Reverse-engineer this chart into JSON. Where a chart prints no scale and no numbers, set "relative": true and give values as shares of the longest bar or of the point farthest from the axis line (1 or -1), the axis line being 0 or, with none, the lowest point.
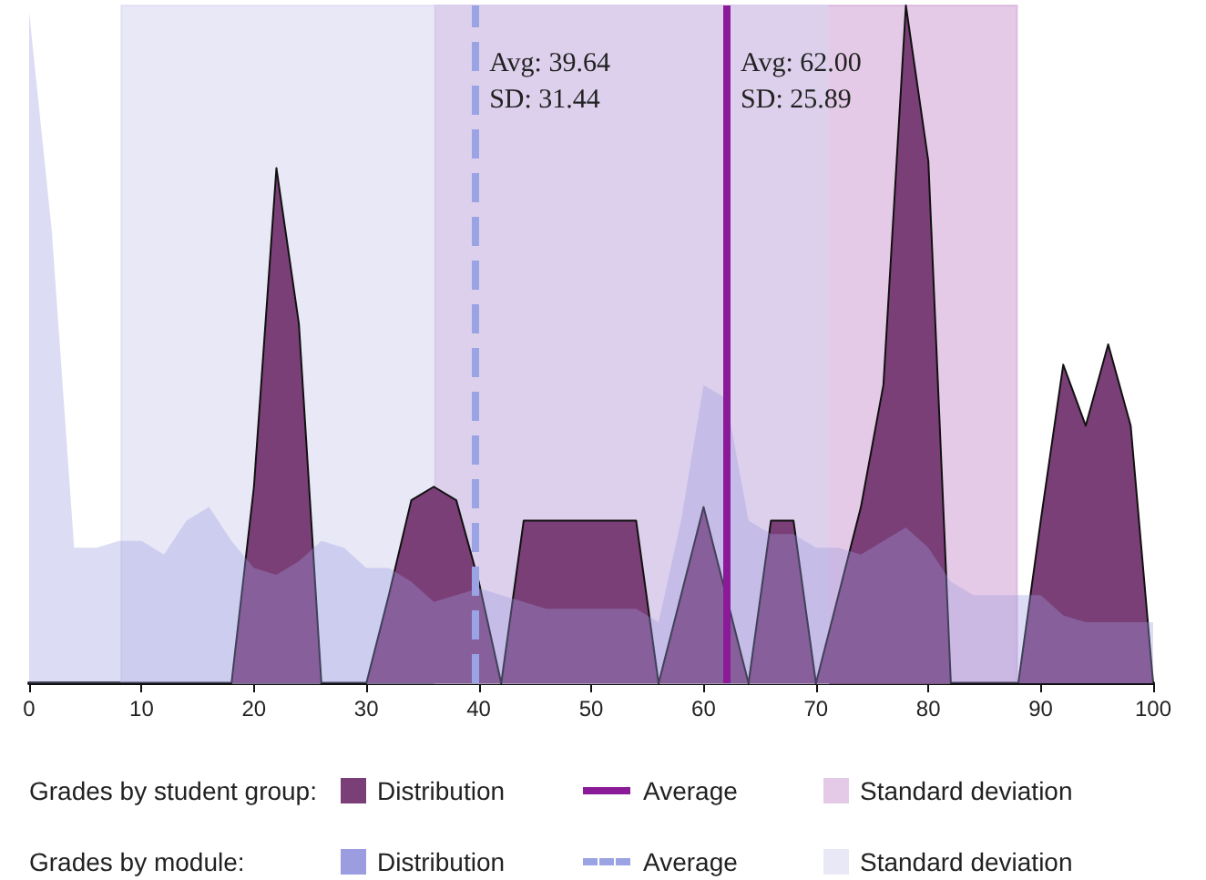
{
  "chart_data": {
    "type": "area",
    "relative": true,
    "x": [
      0,
      2,
      4,
      6,
      8,
      10,
      12,
      14,
      16,
      18,
      20,
      22,
      24,
      26,
      28,
      30,
      32,
      34,
      36,
      38,
      40,
      42,
      44,
      46,
      48,
      50,
      52,
      54,
      56,
      58,
      60,
      62,
      64,
      66,
      68,
      70,
      72,
      74,
      76,
      78,
      80,
      82,
      84,
      86,
      88,
      90,
      92,
      94,
      96,
      98,
      100
    ],
    "xlim": [
      0,
      100
    ],
    "xticks": [
      0,
      10,
      20,
      30,
      40,
      50,
      60,
      70,
      80,
      90,
      100
    ],
    "grid": false,
    "legend": "bottom",
    "series": [
      {
        "name": "Distribution",
        "color": "#7b3f77",
        "values": [
          0,
          0,
          0,
          0,
          0,
          0,
          0,
          0,
          0,
          0,
          0.29,
          0.76,
          0.53,
          0,
          0,
          0,
          0.13,
          0.27,
          0.29,
          0.27,
          0.15,
          0,
          0.24,
          0.24,
          0.24,
          0.24,
          0.24,
          0.24,
          0,
          0.13,
          0.26,
          0.13,
          0,
          0.24,
          0.24,
          0,
          0.13,
          0.26,
          0.44,
          1,
          0.77,
          0,
          0,
          0,
          0,
          0.24,
          0.47,
          0.38,
          0.5,
          0.38,
          0
        ]
      },
      {
        "name": "Distribution",
        "color": "#9c9ce0",
        "values": [
          0.99,
          0.67,
          0.2,
          0.2,
          0.21,
          0.21,
          0.19,
          0.24,
          0.26,
          0.21,
          0.17,
          0.16,
          0.18,
          0.21,
          0.2,
          0.17,
          0.17,
          0.15,
          0.12,
          0.13,
          0.14,
          0.13,
          0.12,
          0.11,
          0.11,
          0.11,
          0.11,
          0.11,
          0.09,
          0.24,
          0.44,
          0.42,
          0.24,
          0.22,
          0.22,
          0.2,
          0.2,
          0.19,
          0.21,
          0.23,
          0.2,
          0.15,
          0.13,
          0.13,
          0.13,
          0.13,
          0.1,
          0.09,
          0.09,
          0.09,
          0.09
        ]
      }
    ],
    "ref_lines": [
      {
        "axis": "x",
        "value": 62,
        "label": "Average",
        "color": "#8b1a98",
        "line_style": "solid"
      },
      {
        "axis": "x",
        "value": 39.64,
        "label": "Average",
        "color": "#9aa3e3",
        "line_style": "dashed"
      }
    ],
    "bands": [
      {
        "axis": "x",
        "from": 36.11,
        "to": 87.89,
        "label": "Standard deviation",
        "color": "#cf9fd4"
      },
      {
        "axis": "x",
        "from": 8.2,
        "to": 71.08,
        "label": "Standard deviation",
        "color": "#d6d6f0"
      }
    ],
    "annotations": [
      "Grades by student group:",
      "Grades by module:",
      {
        "text": "Avg: 39.64\nSD: 31.44",
        "x": 39.64,
        "y": 1
      },
      {
        "text": "Avg: 62.00\nSD: 25.89",
        "x": 62,
        "y": 1
      }
    ]
  }
}
